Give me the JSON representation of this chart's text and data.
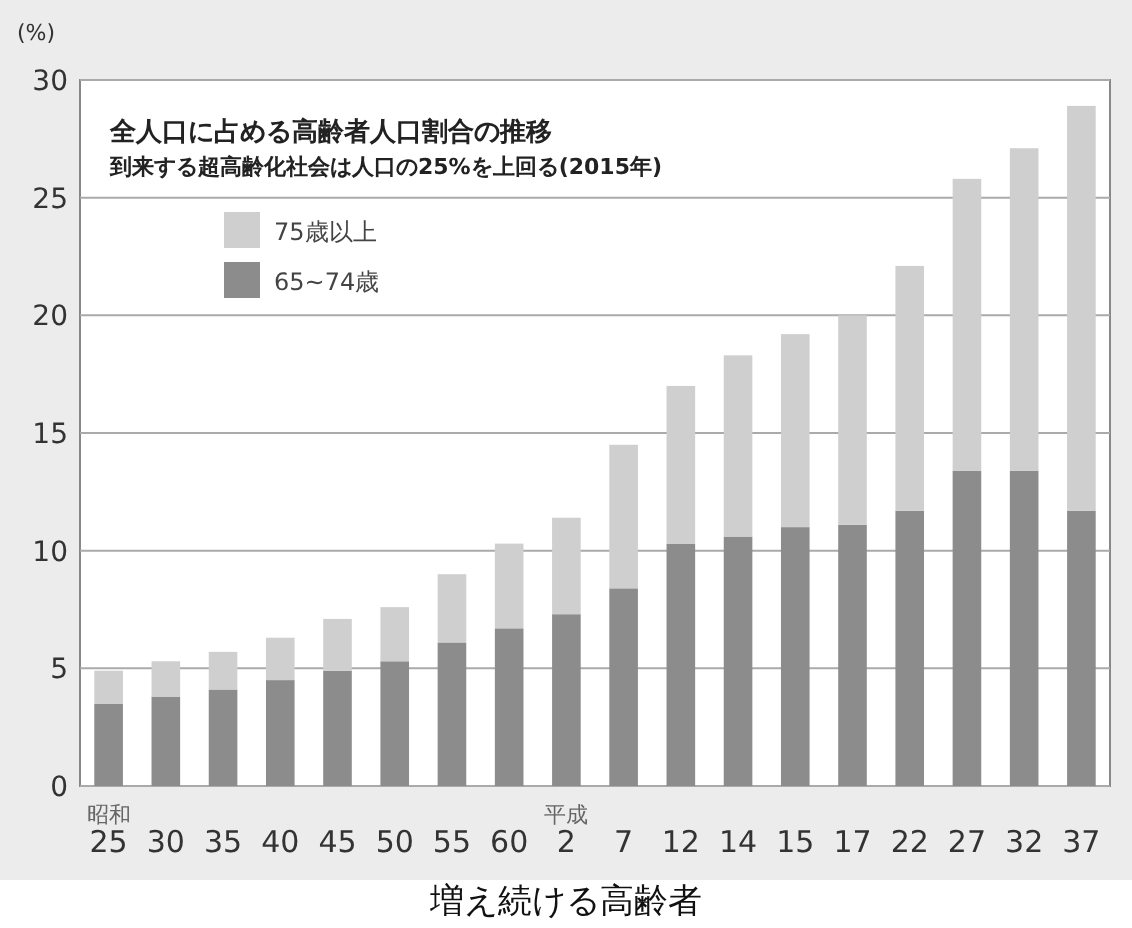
{
  "chart_data": {
    "type": "bar",
    "stacked": true,
    "title": "全人口に占める高齢者人口割合の推移",
    "subtitle": "到来する超高齢化社会は人口の25%を上回る(2015年)",
    "ylabel": "(%)",
    "categories": [
      "昭和\n25",
      "30",
      "35",
      "40",
      "45",
      "50",
      "55",
      "60",
      "平成\n2",
      "7",
      "12",
      "14",
      "15",
      "17",
      "22",
      "27",
      "32",
      "37"
    ],
    "series": [
      {
        "name": "65~74歳",
        "color": "#8c8c8c",
        "values": [
          3.5,
          3.8,
          4.1,
          4.5,
          4.9,
          5.3,
          6.1,
          6.7,
          7.3,
          8.4,
          10.3,
          10.6,
          11.0,
          11.1,
          11.7,
          13.4,
          13.4,
          11.7
        ]
      },
      {
        "name": "75歳以上",
        "color": "#cfcfcf",
        "values": [
          1.4,
          1.5,
          1.6,
          1.8,
          2.2,
          2.3,
          2.9,
          3.6,
          4.1,
          6.1,
          6.7,
          7.7,
          8.2,
          8.9,
          10.4,
          12.4,
          13.7,
          17.2
        ]
      }
    ],
    "ylim": [
      0,
      30
    ],
    "yticks": [
      0,
      5,
      10,
      15,
      20,
      25,
      30
    ],
    "grid": "y",
    "legend": "top left",
    "annotations": [
      "増え続ける高齢者"
    ]
  }
}
